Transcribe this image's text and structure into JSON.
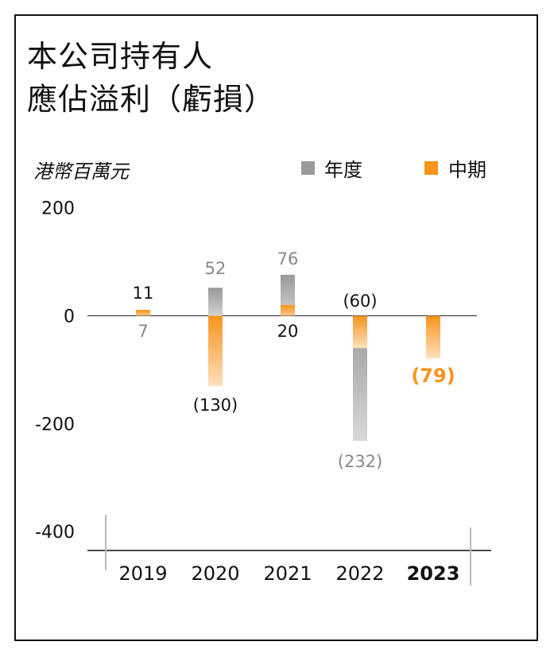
{
  "title": {
    "line1": "本公司持有人",
    "line2": "應佔溢利（虧損）"
  },
  "chart_data": {
    "type": "bar",
    "title": "本公司持有人應佔溢利（虧損）",
    "ylabel": "港幣百萬元",
    "ylim": [
      -400,
      200
    ],
    "yticks": [
      200,
      0,
      -200,
      -400
    ],
    "categories": [
      "2019",
      "2020",
      "2021",
      "2022",
      "2023"
    ],
    "series": [
      {
        "name": "年度",
        "color": "#999999",
        "values": [
          7,
          52,
          76,
          -232,
          null
        ]
      },
      {
        "name": "中期",
        "color": "#f7941d",
        "values": [
          11,
          -130,
          20,
          -60,
          -79
        ]
      }
    ],
    "data_labels": {
      "年度": [
        "7",
        "52",
        "76",
        "(232)",
        ""
      ],
      "中期": [
        "11",
        "(130)",
        "20",
        "(60)",
        "(79)"
      ]
    },
    "highlight_category": "2023",
    "legend_position": "top-right"
  }
}
